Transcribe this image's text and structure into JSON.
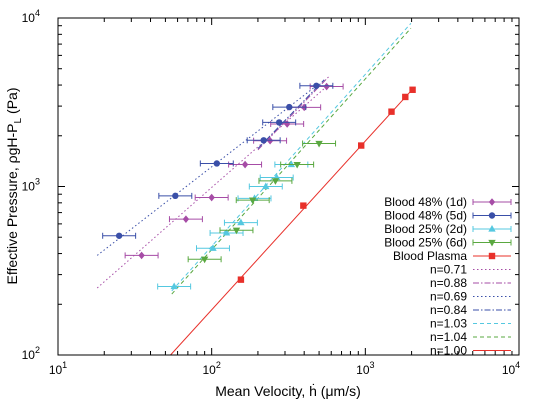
{
  "chart_data": {
    "type": "scatter",
    "xlabel": "Mean Velocity, ḣ (μm/s)",
    "ylabel": "Effective Pressure, ρgH-P",
    "ylabel_sub": "L",
    "ylabel_unit": "(Pa)",
    "x_scale": "log",
    "y_scale": "log",
    "xlim": [
      10,
      10000
    ],
    "ylim": [
      100,
      10000
    ],
    "x_ticks": [
      {
        "value": 10,
        "base": "10",
        "exp": "1"
      },
      {
        "value": 100,
        "base": "10",
        "exp": "2"
      },
      {
        "value": 1000,
        "base": "10",
        "exp": "3"
      },
      {
        "value": 10000,
        "base": "10",
        "exp": "4"
      }
    ],
    "y_ticks": [
      {
        "value": 100,
        "base": "10",
        "exp": "2"
      },
      {
        "value": 1000,
        "base": "10",
        "exp": "3"
      },
      {
        "value": 10000,
        "base": "10",
        "exp": "4"
      }
    ],
    "grid": false,
    "legend_position": "bottom-right",
    "series": [
      {
        "name": "Blood 48% (1d)",
        "color": "#a64ca6",
        "marker": "diamond",
        "xerr": true,
        "points": [
          [
            35,
            390
          ],
          [
            68,
            640
          ],
          [
            100,
            860
          ],
          [
            165,
            1350
          ],
          [
            240,
            1870
          ],
          [
            310,
            2350
          ],
          [
            400,
            2950
          ],
          [
            560,
            3920
          ]
        ]
      },
      {
        "name": "Blood 48% (5d)",
        "color": "#3a4fa8",
        "marker": "circle",
        "xerr": true,
        "points": [
          [
            25,
            510
          ],
          [
            58,
            880
          ],
          [
            108,
            1370
          ],
          [
            218,
            1880
          ],
          [
            275,
            2400
          ],
          [
            320,
            2960
          ],
          [
            480,
            3960
          ]
        ]
      },
      {
        "name": "Blood 25% (2d)",
        "color": "#55c8e0",
        "marker": "triangle-up",
        "xerr": true,
        "points": [
          [
            57,
            255
          ],
          [
            102,
            430
          ],
          [
            125,
            530
          ],
          [
            155,
            610
          ],
          [
            190,
            850
          ],
          [
            225,
            1000
          ],
          [
            265,
            1130
          ],
          [
            330,
            1350
          ]
        ]
      },
      {
        "name": "Blood 25% (6d)",
        "color": "#5aa840",
        "marker": "triangle-down",
        "xerr": true,
        "points": [
          [
            90,
            370
          ],
          [
            145,
            550
          ],
          [
            185,
            830
          ],
          [
            260,
            1080
          ],
          [
            360,
            1350
          ],
          [
            500,
            1800
          ]
        ]
      },
      {
        "name": "Blood Plasma",
        "color": "#e8302a",
        "marker": "square",
        "xerr": false,
        "points": [
          [
            155,
            280
          ],
          [
            395,
            770
          ],
          [
            940,
            1750
          ],
          [
            1480,
            2780
          ],
          [
            1820,
            3400
          ],
          [
            2030,
            3750
          ]
        ]
      }
    ],
    "fits": [
      {
        "name": "n=0.71",
        "color": "#a64ca6",
        "style": "dotted",
        "from": [
          18,
          250
        ],
        "to": [
          560,
          3920
        ]
      },
      {
        "name": "n=0.88",
        "color": "#a64ca6",
        "style": "dashdot",
        "from": [
          200,
          1650
        ],
        "to": [
          580,
          4500
        ]
      },
      {
        "name": "n=0.69",
        "color": "#3a4fa8",
        "style": "dotted",
        "from": [
          18,
          390
        ],
        "to": [
          480,
          3960
        ]
      },
      {
        "name": "n=0.84",
        "color": "#3a4fa8",
        "style": "dashdot",
        "from": [
          200,
          1680
        ],
        "to": [
          540,
          4300
        ]
      },
      {
        "name": "n=1.03",
        "color": "#55c8e0",
        "style": "dashed",
        "from": [
          55,
          240
        ],
        "to": [
          1980,
          9300
        ]
      },
      {
        "name": "n=1.04",
        "color": "#5aa840",
        "style": "dashed",
        "from": [
          55,
          230
        ],
        "to": [
          1980,
          8700
        ]
      },
      {
        "name": "n=1.00",
        "color": "#e8302a",
        "style": "solid",
        "from": [
          54,
          100
        ],
        "to": [
          2050,
          3820
        ]
      }
    ]
  }
}
